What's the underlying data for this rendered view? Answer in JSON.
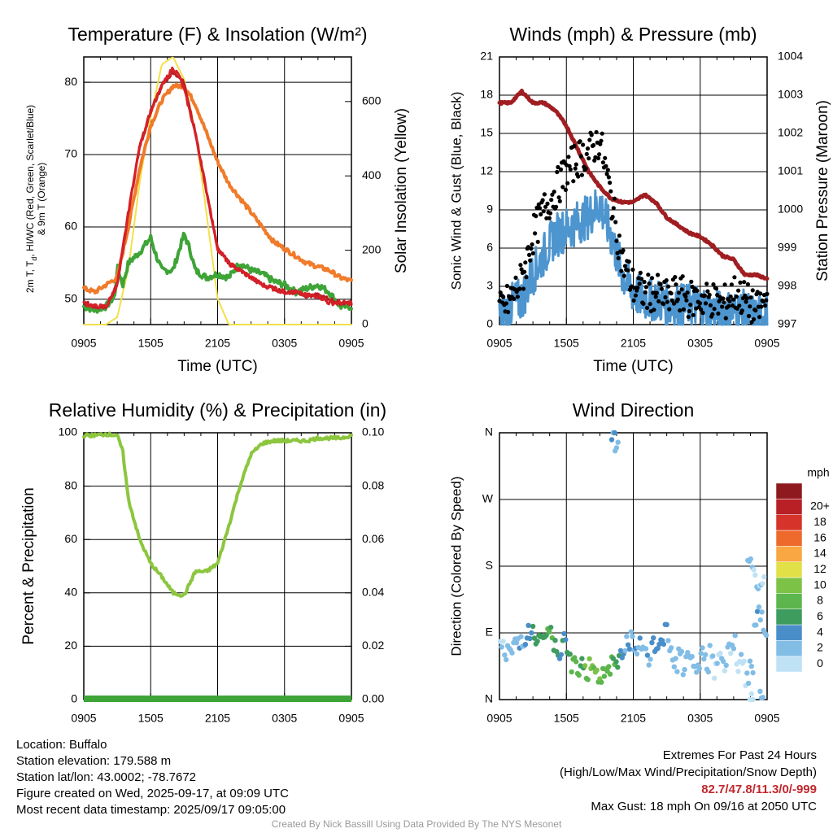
{
  "colors": {
    "temp": "#d62027",
    "heat_index": "#f07b2a",
    "dewpoint": "#3ea437",
    "solar": "#f3e04a",
    "wind": "#4d95cf",
    "gust": "#000000",
    "pressure": "#a01e22",
    "rh": "#8cc63f",
    "precip": "#3ea437"
  },
  "footer": {
    "location": "Location: Buffalo",
    "elevation": "Station elevation: 179.588 m",
    "latlon": "Station lat/lon: 43.0002; -78.7672",
    "created": "Figure created on Wed, 2025-09-17, at 09:09 UTC",
    "recent": "Most recent data timestamp: 2025/09/17 09:05:00",
    "extremes_title": "Extremes For Past 24 Hours",
    "extremes_legend": "(High/Low/Max Wind/Precipitation/Snow Depth)",
    "extremes_values": "82.7/47.8/11.3/0/-999",
    "max_gust": "Max Gust: 18 mph On 09/16 at 2050 UTC",
    "credit": "Created By Nick Bassill Using Data Provided By The NYS Mesonet"
  },
  "chart_data": [
    {
      "type": "line",
      "title": "Temperature (F) & Insolation (W/m²)",
      "xlabel": "Time (UTC)",
      "ylabel_left": "2m T, Tₐ, HI/WC (Red, Green, Scarlet/Blue) & 9m T (Orange)",
      "ylabel_left_line1": "2m T, T",
      "ylabel_left_sub": "d",
      "ylabel_left_line1b": ", HI/WC (Red, Green, Scarlet/Blue)",
      "ylabel_left_line2": "& 9m T (Orange)",
      "ylabel_right": "Solar Insolation (Yellow)",
      "x_ticks": [
        "0905",
        "1505",
        "2105",
        "0305",
        "0905"
      ],
      "y_ticks": [
        "50",
        "60",
        "70",
        "80"
      ],
      "y2_ticks": [
        "0",
        "200",
        "400",
        "600"
      ],
      "ylim": [
        46.5,
        83.5
      ],
      "y2lim": [
        0,
        720
      ],
      "x_hours": [
        0,
        24
      ],
      "series": [
        {
          "name": "2m T",
          "color": "#d62027",
          "x": [
            0,
            1,
            2,
            3,
            4,
            5,
            6,
            7,
            8,
            8.5,
            9,
            10,
            11,
            12,
            13,
            14,
            15,
            16,
            17,
            18,
            19,
            20,
            21,
            22,
            23,
            24
          ],
          "y": [
            49.5,
            49,
            49,
            52,
            62,
            71,
            76,
            79.5,
            82,
            81,
            79,
            73,
            65,
            57,
            55,
            54,
            53,
            52,
            51.5,
            51,
            51,
            50.5,
            50.5,
            49.5,
            49.5,
            49.5
          ]
        },
        {
          "name": "9m T",
          "color": "#f07b2a",
          "x": [
            0,
            1,
            2,
            3,
            4,
            5,
            6,
            7,
            8,
            9,
            10,
            11,
            12,
            13,
            14,
            15,
            16,
            17,
            18,
            19,
            20,
            21,
            22,
            23,
            24
          ],
          "y": [
            51.5,
            51,
            52,
            53,
            60,
            68,
            74,
            77.5,
            79.5,
            79.5,
            77,
            73,
            69,
            66,
            64,
            62,
            60,
            58,
            57,
            56,
            55,
            54.5,
            54,
            53,
            52.5
          ]
        },
        {
          "name": "HI/WC",
          "color": "#d62027",
          "x": [
            0,
            1,
            2,
            3,
            4,
            5,
            6,
            7,
            8,
            9,
            10,
            11,
            12,
            13,
            14,
            15,
            16,
            17,
            18,
            19,
            20,
            21,
            22,
            23,
            24
          ],
          "y": [
            49.5,
            49,
            49,
            52,
            62,
            71,
            76,
            79.5,
            81.5,
            80,
            73,
            65,
            57,
            55,
            54,
            53,
            52,
            51.5,
            51,
            51,
            50.5,
            50.5,
            50,
            49.5,
            49.5
          ]
        },
        {
          "name": "Td",
          "color": "#3ea437",
          "x": [
            0,
            1,
            2,
            2.8,
            3,
            3.5,
            4,
            5,
            6,
            6.5,
            7,
            8,
            9,
            9.5,
            10,
            11,
            12,
            13,
            14,
            15,
            16,
            17,
            18,
            19,
            20,
            21,
            22,
            23,
            24
          ],
          "y": [
            49,
            48.5,
            49,
            50.5,
            54.5,
            52,
            55,
            56.5,
            58.5,
            56,
            54,
            54,
            59,
            57,
            54,
            53,
            53.5,
            53,
            55,
            54,
            53.5,
            52.5,
            52,
            51,
            51.5,
            52,
            51,
            49,
            49
          ]
        },
        {
          "name": "Solar",
          "color": "#f3e04a",
          "axis": "right",
          "x": [
            0,
            1,
            2,
            3,
            4,
            5,
            6,
            7,
            8,
            9,
            10,
            11,
            12,
            13,
            14,
            15,
            16,
            17,
            18,
            19,
            20,
            21,
            22,
            23,
            24
          ],
          "y": [
            0,
            0,
            0,
            20,
            150,
            380,
            560,
            700,
            720,
            660,
            520,
            300,
            70,
            0,
            0,
            0,
            0,
            0,
            0,
            0,
            0,
            0,
            0,
            0,
            0
          ]
        }
      ]
    },
    {
      "type": "scatter",
      "title": "Winds (mph) & Pressure (mb)",
      "xlabel": "Time (UTC)",
      "ylabel_left": "Sonic Wind & Gust (Blue, Black)",
      "ylabel_right": "Station Pressure (Maroon)",
      "x_ticks": [
        "0905",
        "1505",
        "2105",
        "0305",
        "0905"
      ],
      "y_ticks": [
        "0",
        "3",
        "6",
        "9",
        "12",
        "15",
        "18",
        "21"
      ],
      "y2_ticks": [
        "997",
        "998",
        "999",
        "1000",
        "1001",
        "1002",
        "1003",
        "1004"
      ],
      "ylim": [
        0,
        21
      ],
      "y2lim": [
        997,
        1004
      ],
      "x_hours": [
        0,
        24
      ],
      "series": [
        {
          "name": "Sonic Wind",
          "color": "#4d95cf",
          "x": [
            0,
            1,
            2,
            3,
            4,
            5,
            6,
            7,
            8,
            9,
            10,
            11,
            12,
            13,
            14,
            15,
            16,
            17,
            18,
            19,
            20,
            21,
            22,
            23,
            24
          ],
          "y": [
            0.5,
            1.5,
            2,
            4,
            5.5,
            7,
            7.5,
            8,
            8.5,
            9.5,
            7,
            4,
            2.5,
            2,
            2,
            1.5,
            1.5,
            1.5,
            1.5,
            1,
            1,
            1,
            1,
            0.5,
            1
          ]
        },
        {
          "name": "Gust",
          "color": "#000000",
          "x": [
            0,
            1,
            2,
            3,
            4,
            5,
            6,
            7,
            8,
            9,
            10,
            11,
            12,
            13,
            14,
            15,
            16,
            17,
            18,
            19,
            20,
            21,
            22,
            23,
            24
          ],
          "y": [
            1,
            2,
            3.5,
            7,
            9,
            10.5,
            12,
            13,
            13.5,
            14.5,
            10,
            5,
            3,
            2.5,
            2.5,
            2,
            2.5,
            2,
            2,
            2,
            1.5,
            2.5,
            2,
            1,
            2
          ]
        },
        {
          "name": "Station Pressure",
          "color": "#a01e22",
          "axis": "right",
          "x": [
            0,
            1,
            2,
            3,
            4,
            5,
            6,
            7,
            8,
            9,
            10,
            11,
            12,
            13,
            14,
            15,
            16,
            17,
            18,
            19,
            20,
            21,
            22,
            23,
            24
          ],
          "y": [
            1002.8,
            1002.8,
            1003.1,
            1002.8,
            1002.8,
            1002.6,
            1002.2,
            1001.6,
            1001.0,
            1000.6,
            1000.3,
            1000.2,
            1000.2,
            1000.4,
            1000.2,
            999.8,
            999.6,
            999.4,
            999.3,
            999.1,
            998.8,
            998.7,
            998.3,
            998.3,
            998.2
          ]
        }
      ]
    },
    {
      "type": "line",
      "title": "Relative Humidity (%) & Precipitation (in)",
      "ylabel_left": "Percent & Precipitation",
      "x_ticks": [
        "0905",
        "1505",
        "2105",
        "0305",
        "0905"
      ],
      "y_ticks": [
        "0",
        "20",
        "40",
        "60",
        "80",
        "100"
      ],
      "y2_ticks": [
        "0.00",
        "0.02",
        "0.04",
        "0.06",
        "0.08",
        "0.10"
      ],
      "ylim": [
        0,
        100
      ],
      "y2lim": [
        0,
        0.1
      ],
      "x_hours": [
        0,
        24
      ],
      "series": [
        {
          "name": "RH",
          "color": "#8cc63f",
          "x": [
            0,
            1,
            2,
            3,
            3.5,
            4,
            5,
            6,
            7,
            8,
            9,
            10,
            11,
            12,
            13,
            14,
            15,
            16,
            17,
            18,
            19,
            20,
            21,
            22,
            23,
            24
          ],
          "y": [
            99,
            99,
            99.5,
            99,
            93,
            75,
            60,
            51,
            46,
            40,
            39,
            48,
            48,
            51,
            65,
            80,
            92,
            96,
            97,
            97,
            97,
            97,
            98,
            98,
            98,
            99
          ]
        },
        {
          "name": "Precipitation",
          "color": "#3ea437",
          "axis": "right",
          "x": [
            0,
            24
          ],
          "y": [
            0,
            0
          ]
        }
      ]
    },
    {
      "type": "scatter",
      "title": "Wind Direction",
      "ylabel_left": "Direction (Colored By Speed)",
      "x_ticks": [
        "0905",
        "1505",
        "2105",
        "0305",
        "0905"
      ],
      "y_ticks": [
        "N",
        "E",
        "S",
        "W",
        "N"
      ],
      "ylim": [
        0,
        360
      ],
      "x_hours": [
        0,
        24
      ],
      "colorbar": {
        "title": "mph",
        "labels": [
          "0",
          "2",
          "4",
          "6",
          "8",
          "10",
          "12",
          "14",
          "16",
          "18",
          "20+"
        ],
        "colors": [
          "#bfe2f5",
          "#82bde6",
          "#4a8ec9",
          "#3e9c5e",
          "#5cb64d",
          "#7cc247",
          "#e2e047",
          "#f8a743",
          "#ee6a2c",
          "#d6342a",
          "#b82025",
          "#8e1a1f"
        ]
      },
      "series": [
        {
          "name": "Direction",
          "x": [
            0.2,
            0.6,
            1.0,
            1.4,
            1.8,
            2.2,
            2.6,
            3.0,
            3.4,
            3.8,
            4.2,
            4.6,
            5.0,
            5.4,
            5.8,
            6.2,
            6.6,
            7.0,
            7.4,
            7.8,
            8.2,
            8.6,
            9.0,
            9.4,
            9.8,
            10.2,
            10.6,
            11.0,
            11.4,
            11.8,
            12.2,
            12.6,
            13.0,
            13.4,
            13.8,
            14.2,
            14.6,
            15.0,
            15.4,
            15.8,
            16.2,
            16.6,
            17.0,
            17.4,
            17.8,
            18.2,
            18.6,
            19.0,
            19.4,
            19.8,
            20.2,
            20.6,
            21.0,
            21.4,
            21.8,
            22.2,
            22.6,
            23.0,
            23.4,
            23.8,
            10.2,
            10.5,
            22.4,
            22.8,
            23.2,
            23.6,
            22.6,
            23.5
          ],
          "y": [
            70,
            60,
            65,
            75,
            80,
            85,
            90,
            88,
            80,
            75,
            85,
            90,
            70,
            65,
            75,
            55,
            50,
            45,
            55,
            40,
            50,
            45,
            30,
            40,
            35,
            50,
            55,
            60,
            75,
            80,
            60,
            70,
            65,
            55,
            70,
            75,
            80,
            90,
            60,
            50,
            55,
            45,
            50,
            45,
            40,
            60,
            50,
            70,
            40,
            55,
            45,
            70,
            75,
            40,
            50,
            30,
            45,
            110,
            120,
            90,
            355,
            345,
            190,
            180,
            150,
            165,
            0,
            0
          ],
          "speed": [
            1,
            2,
            2,
            3,
            3,
            3,
            4,
            5,
            6,
            6,
            7,
            7,
            6,
            5,
            5,
            7,
            8,
            8,
            6,
            9,
            10,
            9,
            9,
            9,
            8,
            7,
            5,
            4,
            3,
            3,
            3,
            3,
            2,
            3,
            3,
            4,
            4,
            3,
            2,
            2,
            2,
            2,
            1,
            2,
            2,
            2,
            2,
            1,
            1,
            1,
            1,
            1,
            1,
            1,
            1,
            1,
            2,
            3,
            2,
            2,
            3,
            3,
            2,
            1,
            1,
            1,
            1,
            1
          ]
        }
      ]
    }
  ]
}
